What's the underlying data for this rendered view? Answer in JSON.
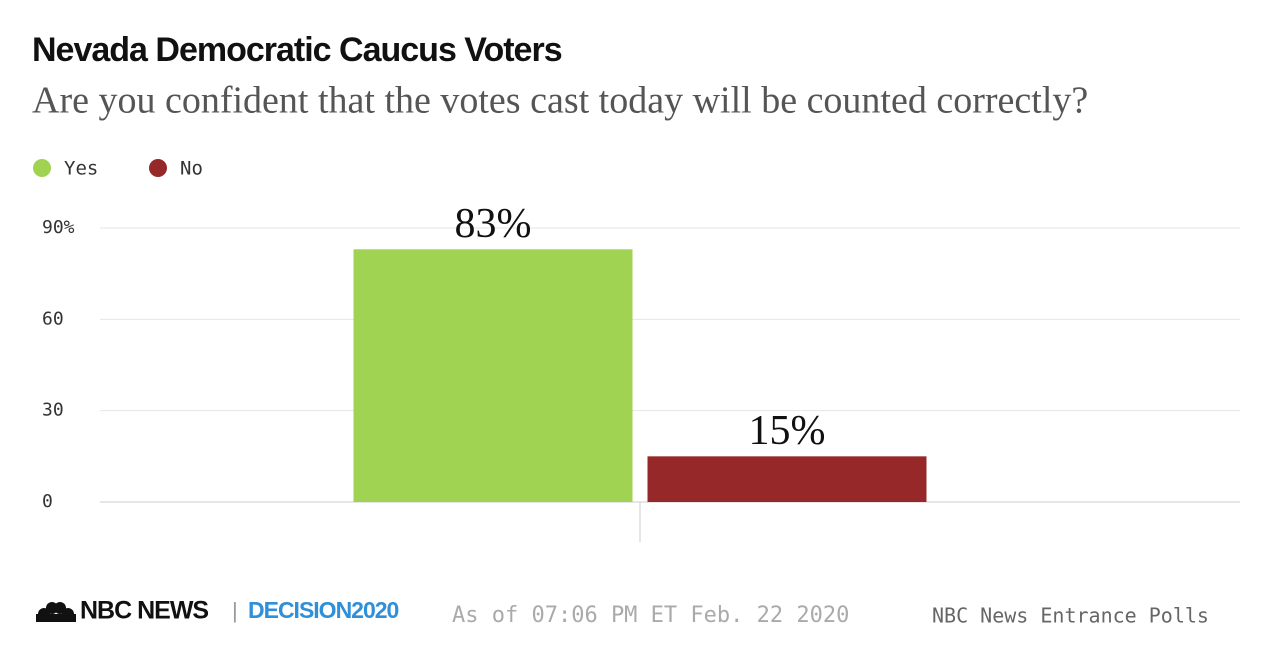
{
  "chart_data": {
    "type": "bar",
    "title": "Nevada Democratic Caucus Voters",
    "subtitle": "Are you confident that the votes cast today will be counted correctly?",
    "categories": [
      null
    ],
    "series": [
      {
        "name": "Yes",
        "color": "#9fd351",
        "values": [
          83
        ],
        "value_labels": [
          "83%"
        ]
      },
      {
        "name": "No",
        "color": "#962829",
        "values": [
          15
        ],
        "value_labels": [
          "15%"
        ]
      }
    ],
    "ylim": [
      0,
      90
    ],
    "yticks": [
      0,
      30,
      60,
      {
        "value": 90,
        "label": "90%"
      }
    ],
    "grid": true,
    "legend": "top-left"
  },
  "footer": {
    "brand": "NBC NEWS",
    "logo": "DECISION2020",
    "timestamp": "As of 07:06 PM ET Feb. 22 2020",
    "source": "NBC News Entrance Polls"
  }
}
